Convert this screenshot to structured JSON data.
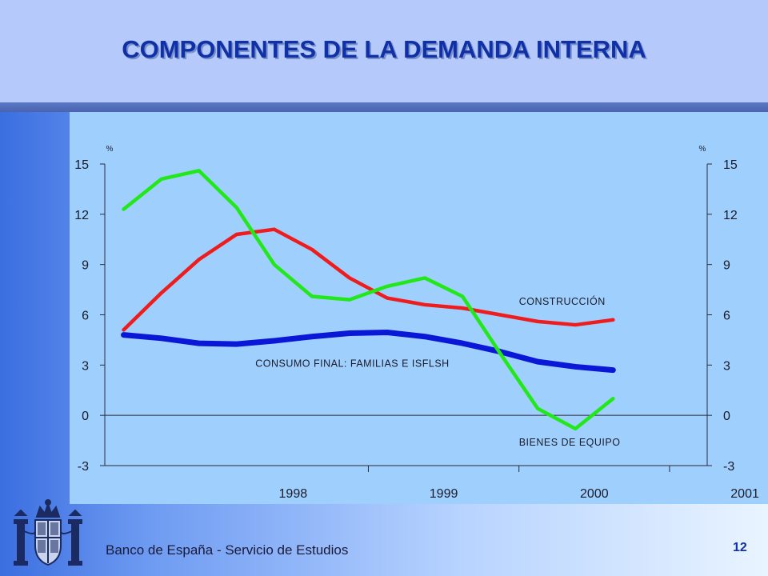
{
  "header": {
    "title": "COMPONENTES DE LA DEMANDA INTERNA"
  },
  "footer": {
    "institution": "Banco de España - Servicio de Estudios",
    "page": "12"
  },
  "colors": {
    "construccion": "#ee1c1c",
    "consumo": "#0a17d6",
    "bienes": "#22e81a",
    "title": "#1030a8"
  },
  "chart_data": {
    "type": "line",
    "y_unit_left": "%",
    "y_unit_right": "%",
    "ylim": [
      -3,
      15
    ],
    "yticks": [
      -3,
      0,
      3,
      6,
      9,
      12,
      15
    ],
    "x_years": [
      "1998",
      "1999",
      "2000",
      "2001"
    ],
    "x_range": [
      1997.25,
      2001.25
    ],
    "grid": false,
    "series": [
      {
        "name": "CONSTRUCCIÓN",
        "color": "#ee1c1c",
        "x": [
          1997.375,
          1997.625,
          1997.875,
          1998.125,
          1998.375,
          1998.625,
          1998.875,
          1999.125,
          1999.375,
          1999.625,
          1999.875,
          2000.125,
          2000.375,
          2000.625,
          2000.875
        ],
        "values": [
          5.1,
          7.3,
          9.3,
          10.8,
          11.1,
          9.9,
          8.2,
          7.0,
          6.6,
          6.4,
          6.0,
          5.6,
          5.4,
          5.7,
          null
        ]
      },
      {
        "name": "CONSUMO FINAL: FAMILIAS E ISFLSH",
        "color": "#0a17d6",
        "x": [
          1997.375,
          1997.625,
          1997.875,
          1998.125,
          1998.375,
          1998.625,
          1998.875,
          1999.125,
          1999.375,
          1999.625,
          1999.875,
          2000.125,
          2000.375,
          2000.625,
          2000.875
        ],
        "values": [
          4.8,
          4.6,
          4.3,
          4.25,
          4.45,
          4.7,
          4.9,
          4.95,
          4.7,
          4.3,
          3.8,
          3.2,
          2.9,
          2.7,
          null
        ]
      },
      {
        "name": "BIENES DE EQUIPO",
        "color": "#22e81a",
        "x": [
          1997.375,
          1997.625,
          1997.875,
          1998.125,
          1998.375,
          1998.625,
          1998.875,
          1999.125,
          1999.375,
          1999.625,
          1999.875,
          2000.125,
          2000.375,
          2000.625,
          2000.875
        ],
        "values": [
          12.3,
          14.1,
          14.6,
          12.4,
          9.0,
          7.1,
          6.9,
          7.7,
          8.2,
          7.1,
          3.7,
          0.4,
          -0.8,
          1.0,
          null
        ]
      }
    ],
    "annotations": [
      {
        "text": "CONSTRUCCIÓN",
        "x": 2000.0,
        "y": 6.6,
        "anchor": "start"
      },
      {
        "text": "CONSUMO FINAL: FAMILIAS E ISFLSH",
        "x": 1998.25,
        "y": 2.9,
        "anchor": "start"
      },
      {
        "text": "BIENES DE EQUIPO",
        "x": 2000.0,
        "y": -1.8,
        "anchor": "start"
      }
    ]
  }
}
